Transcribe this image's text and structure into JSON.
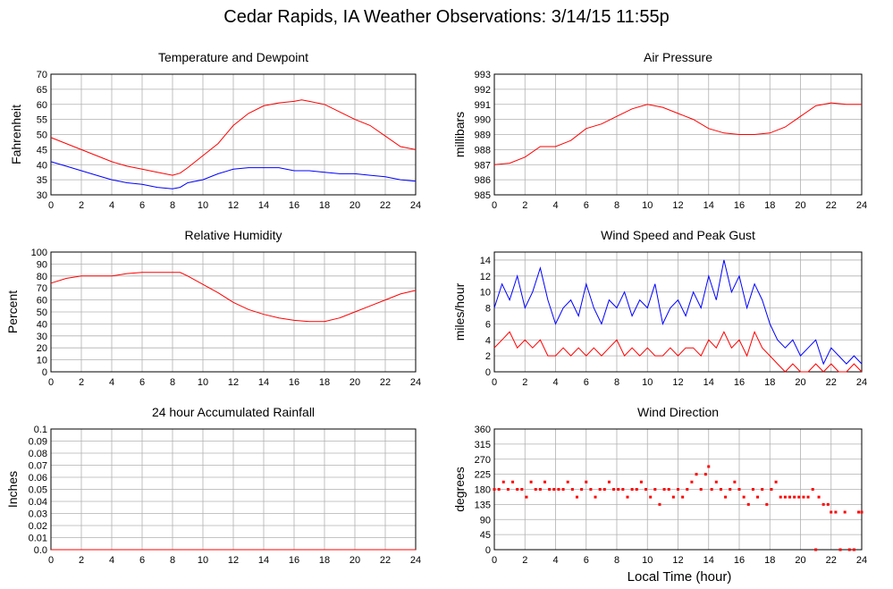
{
  "title": "Cedar Rapids, IA Weather Observations: 3/14/15 11:55p",
  "footer_xlabel": "Local Time (hour)",
  "colors": {
    "red": "#ff0000",
    "blue": "#0000ff",
    "grid": "#b0b0b0"
  },
  "chart_data": [
    {
      "id": "temp",
      "type": "line",
      "title": "Temperature and Dewpoint",
      "ylabel": "Fahrenheit",
      "xlim": [
        0,
        24
      ],
      "ylim": [
        30,
        70
      ],
      "xticks": [
        0,
        2,
        4,
        6,
        8,
        10,
        12,
        14,
        16,
        18,
        20,
        22,
        24
      ],
      "yticks": [
        30,
        35,
        40,
        45,
        50,
        55,
        60,
        65,
        70
      ],
      "grid": true,
      "series": [
        {
          "color": "red",
          "x": [
            0,
            1,
            2,
            3,
            4,
            5,
            6,
            7,
            8,
            8.5,
            9,
            10,
            11,
            12,
            13,
            14,
            15,
            16,
            16.5,
            17,
            18,
            19,
            20,
            21,
            22,
            23,
            24
          ],
          "y": [
            49,
            47,
            45,
            43,
            41,
            39.5,
            38.5,
            37.5,
            36.5,
            37.2,
            39,
            43,
            47,
            53,
            57,
            59.5,
            60.5,
            61,
            61.5,
            61,
            60,
            57.5,
            55,
            53,
            49.5,
            46,
            45
          ]
        },
        {
          "color": "blue",
          "x": [
            0,
            1,
            2,
            3,
            4,
            5,
            6,
            7,
            8,
            8.5,
            9,
            10,
            11,
            12,
            13,
            14,
            15,
            16,
            17,
            18,
            19,
            20,
            21,
            22,
            23,
            24
          ],
          "y": [
            41,
            39.5,
            38,
            36.5,
            35,
            34,
            33.5,
            32.5,
            32,
            32.5,
            34,
            35,
            37,
            38.5,
            39,
            39,
            39,
            38,
            38,
            37.5,
            37,
            37,
            36.5,
            36,
            35,
            34.5
          ]
        }
      ]
    },
    {
      "id": "pressure",
      "type": "line",
      "title": "Air Pressure",
      "ylabel": "millibars",
      "xlim": [
        0,
        24
      ],
      "ylim": [
        985,
        993
      ],
      "xticks": [
        0,
        2,
        4,
        6,
        8,
        10,
        12,
        14,
        16,
        18,
        20,
        22,
        24
      ],
      "yticks": [
        985,
        986,
        987,
        988,
        989,
        990,
        991,
        992,
        993
      ],
      "grid": true,
      "series": [
        {
          "color": "red",
          "x": [
            0,
            1,
            2,
            3,
            4,
            5,
            6,
            7,
            8,
            9,
            10,
            11,
            12,
            13,
            14,
            15,
            16,
            17,
            18,
            19,
            20,
            21,
            22,
            23,
            24
          ],
          "y": [
            987,
            987.1,
            987.5,
            988.2,
            988.2,
            988.6,
            989.4,
            989.7,
            990.2,
            990.7,
            991,
            990.8,
            990.4,
            990,
            989.4,
            989.1,
            989,
            989,
            989.1,
            989.5,
            990.2,
            990.9,
            991.1,
            991,
            991
          ]
        }
      ]
    },
    {
      "id": "humidity",
      "type": "line",
      "title": "Relative Humidity",
      "ylabel": "Percent",
      "xlim": [
        0,
        24
      ],
      "ylim": [
        0,
        100
      ],
      "xticks": [
        0,
        2,
        4,
        6,
        8,
        10,
        12,
        14,
        16,
        18,
        20,
        22,
        24
      ],
      "yticks": [
        0,
        10,
        20,
        30,
        40,
        50,
        60,
        70,
        80,
        90,
        100
      ],
      "grid": true,
      "series": [
        {
          "color": "red",
          "x": [
            0,
            1,
            2,
            3,
            4,
            5,
            6,
            7,
            8,
            8.5,
            9,
            10,
            11,
            12,
            13,
            14,
            15,
            16,
            17,
            18,
            19,
            20,
            21,
            22,
            23,
            24
          ],
          "y": [
            74,
            78,
            80,
            80,
            80,
            82,
            83,
            83,
            83,
            83,
            80,
            73,
            66,
            58,
            52,
            48,
            45,
            43,
            42,
            42,
            45,
            50,
            55,
            60,
            65,
            68
          ]
        }
      ]
    },
    {
      "id": "wind",
      "type": "line",
      "title": "Wind Speed and Peak Gust",
      "ylabel": "miles/hour",
      "xlim": [
        0,
        24
      ],
      "ylim": [
        0,
        15
      ],
      "xticks": [
        0,
        2,
        4,
        6,
        8,
        10,
        12,
        14,
        16,
        18,
        20,
        22,
        24
      ],
      "yticks": [
        0,
        2,
        4,
        6,
        8,
        10,
        12,
        14
      ],
      "grid": true,
      "series": [
        {
          "color": "blue",
          "x": [
            0,
            0.5,
            1,
            1.5,
            2,
            2.5,
            3,
            3.5,
            4,
            4.5,
            5,
            5.5,
            6,
            6.5,
            7,
            7.5,
            8,
            8.5,
            9,
            9.5,
            10,
            10.5,
            11,
            11.5,
            12,
            12.5,
            13,
            13.5,
            14,
            14.5,
            15,
            15.5,
            16,
            16.5,
            17,
            17.5,
            18,
            18.5,
            19,
            19.5,
            20,
            20.5,
            21,
            21.5,
            22,
            22.5,
            23,
            23.5,
            24
          ],
          "y": [
            8,
            11,
            9,
            12,
            8,
            10,
            13,
            9,
            6,
            8,
            9,
            7,
            11,
            8,
            6,
            9,
            8,
            10,
            7,
            9,
            8,
            11,
            6,
            8,
            9,
            7,
            10,
            8,
            12,
            9,
            14,
            10,
            12,
            8,
            11,
            9,
            6,
            4,
            3,
            4,
            2,
            3,
            4,
            1,
            3,
            2,
            1,
            2,
            1
          ]
        },
        {
          "color": "red",
          "x": [
            0,
            0.5,
            1,
            1.5,
            2,
            2.5,
            3,
            3.5,
            4,
            4.5,
            5,
            5.5,
            6,
            6.5,
            7,
            7.5,
            8,
            8.5,
            9,
            9.5,
            10,
            10.5,
            11,
            11.5,
            12,
            12.5,
            13,
            13.5,
            14,
            14.5,
            15,
            15.5,
            16,
            16.5,
            17,
            17.5,
            18,
            18.5,
            19,
            19.5,
            20,
            20.5,
            21,
            21.5,
            22,
            22.5,
            23,
            23.5,
            24
          ],
          "y": [
            3,
            4,
            5,
            3,
            4,
            3,
            4,
            2,
            2,
            3,
            2,
            3,
            2,
            3,
            2,
            3,
            4,
            2,
            3,
            2,
            3,
            2,
            2,
            3,
            2,
            3,
            3,
            2,
            4,
            3,
            5,
            3,
            4,
            2,
            5,
            3,
            2,
            1,
            0,
            1,
            0,
            0,
            1,
            0,
            1,
            0,
            0,
            1,
            0
          ]
        }
      ]
    },
    {
      "id": "rain",
      "type": "line",
      "title": "24 hour Accumulated Rainfall",
      "ylabel": "Inches",
      "xlim": [
        0,
        24
      ],
      "ylim": [
        0,
        0.1
      ],
      "xticks": [
        0,
        2,
        4,
        6,
        8,
        10,
        12,
        14,
        16,
        18,
        20,
        22,
        24
      ],
      "yticks": [
        0,
        0.01,
        0.02,
        0.03,
        0.04,
        0.05,
        0.06,
        0.07,
        0.08,
        0.09,
        0.1
      ],
      "ytick_labels": [
        "0.0",
        "0.01",
        "0.02",
        "0.03",
        "0.04",
        "0.05",
        "0.06",
        "0.07",
        "0.08",
        "0.09",
        "0.1"
      ],
      "grid": true,
      "series": [
        {
          "color": "red",
          "x": [
            0,
            24
          ],
          "y": [
            0,
            0
          ]
        }
      ]
    },
    {
      "id": "direction",
      "type": "scatter",
      "title": "Wind Direction",
      "ylabel": "degrees",
      "xlim": [
        0,
        24
      ],
      "ylim": [
        0,
        360
      ],
      "xticks": [
        0,
        2,
        4,
        6,
        8,
        10,
        12,
        14,
        16,
        18,
        20,
        22,
        24
      ],
      "yticks": [
        0,
        45,
        90,
        135,
        180,
        225,
        270,
        315,
        360
      ],
      "grid": true,
      "series": [
        {
          "color": "red",
          "x": [
            0,
            0.3,
            0.6,
            0.9,
            1.2,
            1.5,
            1.8,
            2.1,
            2.4,
            2.7,
            3,
            3.3,
            3.6,
            3.9,
            4.2,
            4.5,
            4.8,
            5.1,
            5.4,
            5.7,
            6,
            6.3,
            6.6,
            6.9,
            7.2,
            7.5,
            7.8,
            8.1,
            8.4,
            8.7,
            9,
            9.3,
            9.6,
            9.9,
            10.2,
            10.5,
            10.8,
            11.1,
            11.4,
            11.7,
            12,
            12.3,
            12.6,
            12.9,
            13.2,
            13.5,
            13.8,
            14,
            14.2,
            14.5,
            14.8,
            15.1,
            15.4,
            15.7,
            16,
            16.3,
            16.6,
            16.9,
            17.2,
            17.5,
            17.8,
            18.1,
            18.4,
            18.7,
            19,
            19.3,
            19.6,
            19.9,
            20.2,
            20.5,
            20.8,
            21,
            21.2,
            21.5,
            21.8,
            22,
            22.3,
            22.6,
            22.9,
            23.2,
            23.5,
            23.8,
            24
          ],
          "y": [
            180,
            180,
            202,
            180,
            202,
            180,
            180,
            157,
            202,
            180,
            180,
            202,
            180,
            180,
            180,
            180,
            202,
            180,
            157,
            180,
            202,
            180,
            157,
            180,
            180,
            202,
            180,
            180,
            180,
            157,
            180,
            180,
            202,
            180,
            157,
            180,
            135,
            180,
            180,
            157,
            180,
            157,
            180,
            202,
            225,
            180,
            225,
            248,
            180,
            202,
            180,
            157,
            180,
            202,
            180,
            157,
            135,
            180,
            157,
            180,
            135,
            180,
            202,
            157,
            157,
            157,
            157,
            157,
            157,
            157,
            180,
            0,
            157,
            135,
            135,
            112,
            112,
            0,
            112,
            0,
            0,
            112,
            112
          ]
        }
      ]
    }
  ]
}
